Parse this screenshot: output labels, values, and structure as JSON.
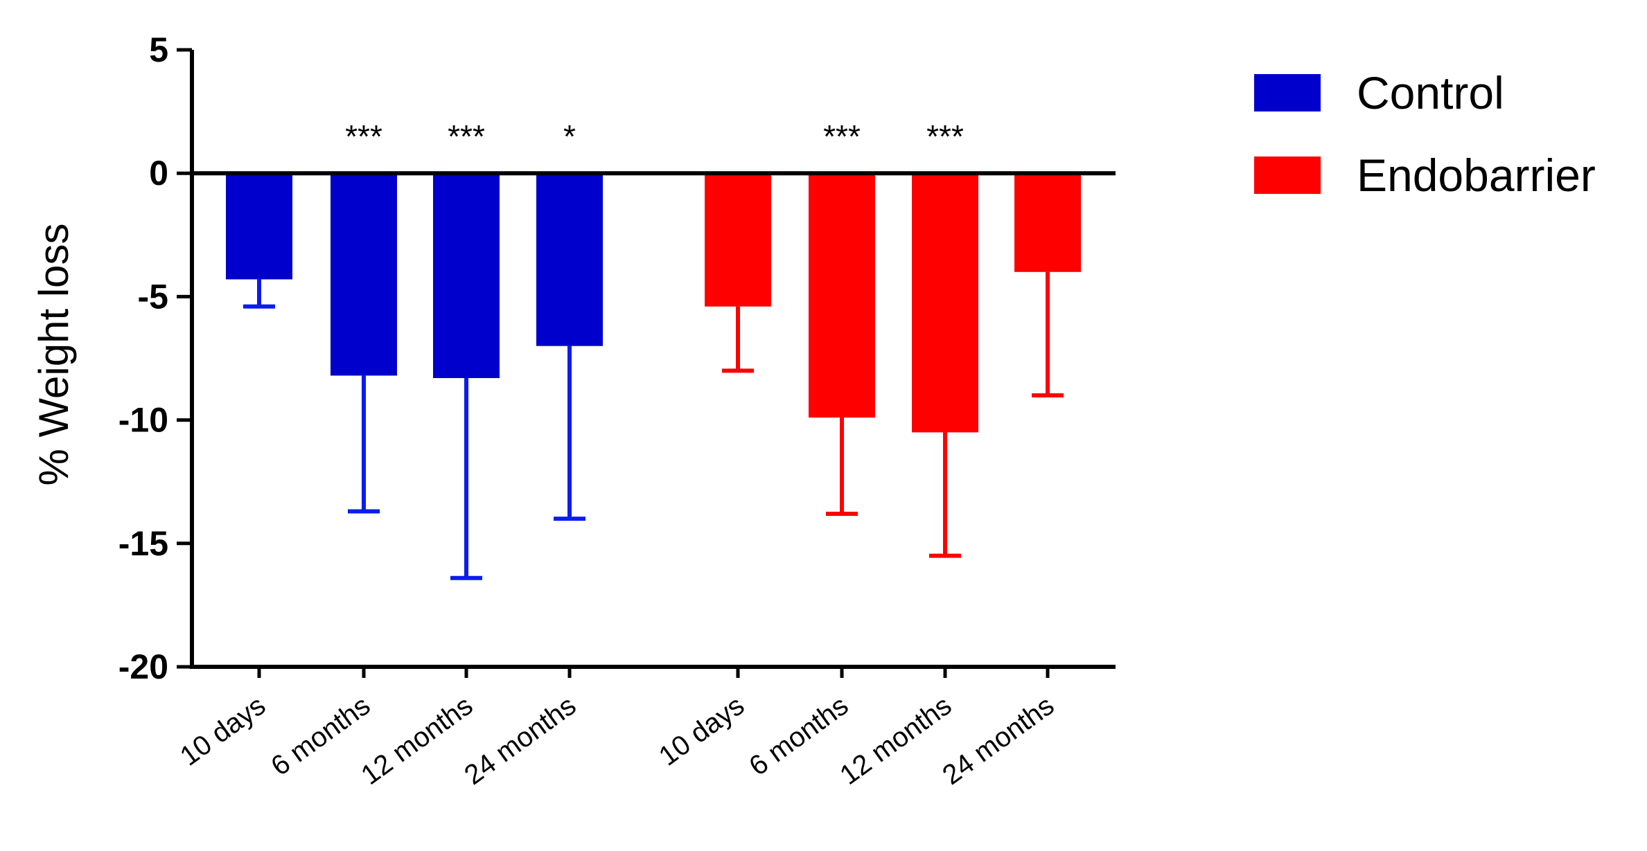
{
  "chart_data": {
    "type": "bar",
    "title": "",
    "xlabel": "",
    "ylabel": "% Weight loss",
    "ylim": [
      -20,
      5
    ],
    "yticks": [
      5,
      0,
      -5,
      -10,
      -15,
      -20
    ],
    "ytick_labels": [
      "5",
      "0",
      "-5",
      "-10",
      "-15",
      "-20"
    ],
    "grid": false,
    "legend_position": "top-right",
    "series": [
      {
        "name": "Control",
        "color": "#0000cc",
        "error_color": "#0a1cf0",
        "categories": [
          "10 days",
          "6 months",
          "12 months",
          "24 months"
        ],
        "values": [
          -4.3,
          -8.2,
          -8.3,
          -7.0
        ],
        "error_low": [
          -5.4,
          -13.7,
          -16.4,
          -14.0
        ],
        "significance": [
          "",
          "***",
          "***",
          "*"
        ]
      },
      {
        "name": "Endobarrier",
        "color": "#ff0000",
        "error_color": "#ff0000",
        "categories": [
          "10 days",
          "6 months",
          "12 months",
          "24 months"
        ],
        "values": [
          -5.4,
          -9.9,
          -10.5,
          -4.0
        ],
        "error_low": [
          -8.0,
          -13.8,
          -15.5,
          -9.0
        ],
        "significance": [
          "",
          "***",
          "***",
          ""
        ]
      }
    ]
  }
}
